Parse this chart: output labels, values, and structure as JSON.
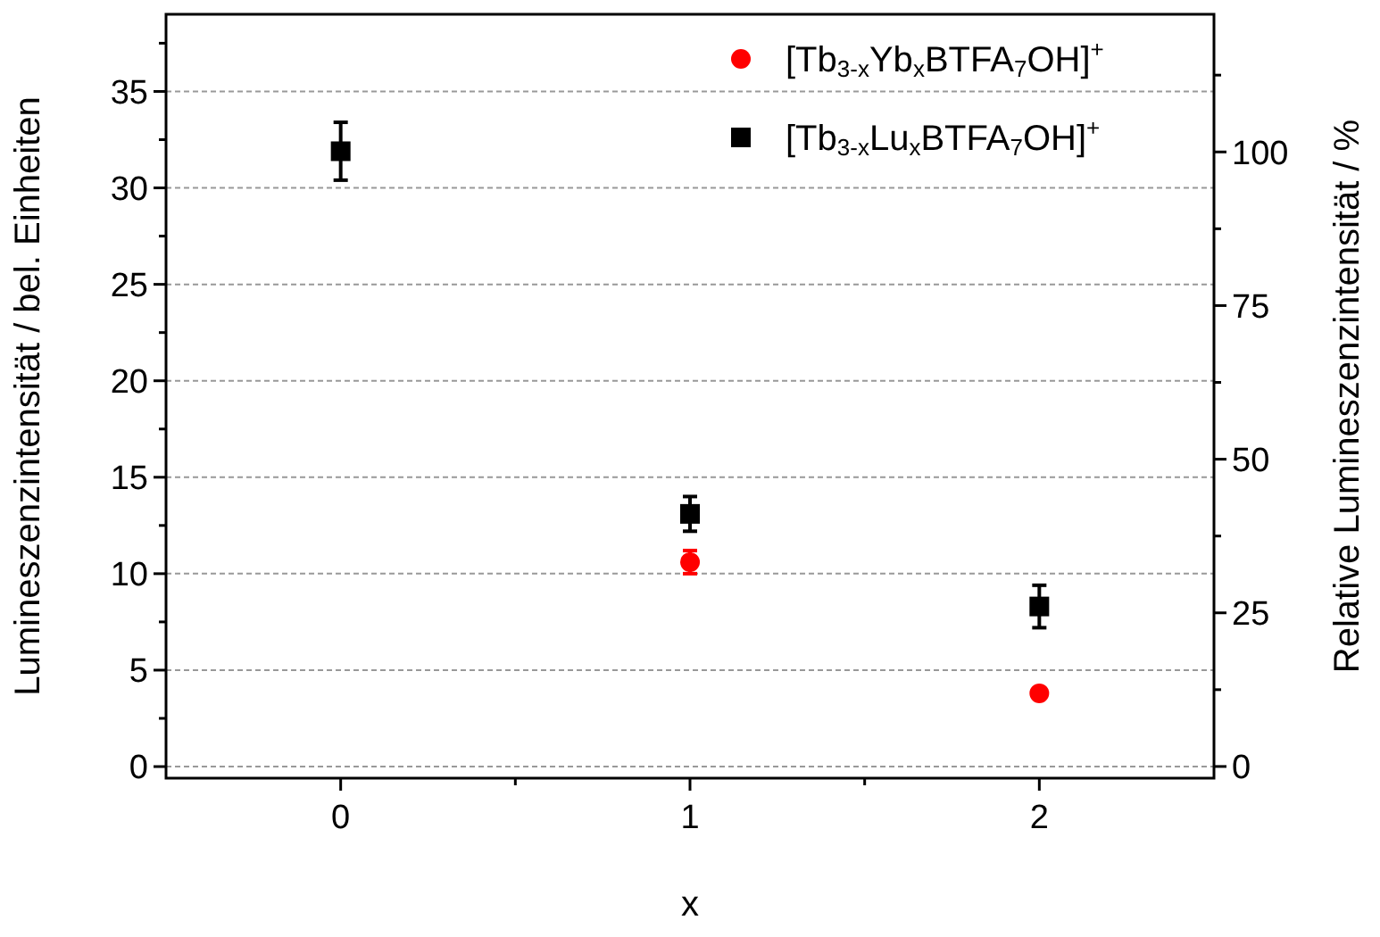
{
  "chart_data": {
    "type": "scatter",
    "xlabel": "x",
    "ylabel": "Lumineszenzintensität / bel. Einheiten",
    "y2label": "Relative Lumineszenzintensität / %",
    "x": [
      0,
      1,
      2
    ],
    "series": [
      {
        "name": "[Tb$_{3-x}$Yb$_{x}$BTFA$_{7}$OH]$^{+}$",
        "color": "#ff0000",
        "marker": "circle",
        "values": [
          null,
          10.6,
          3.8
        ],
        "errors": [
          null,
          0.6,
          null
        ]
      },
      {
        "name": "[Tb$_{3-x}$Lu$_{x}$BTFA$_{7}$OH]$^{+}$",
        "color": "#000000",
        "marker": "square",
        "values": [
          31.9,
          13.1,
          8.3
        ],
        "errors": [
          1.5,
          0.9,
          1.1
        ]
      }
    ],
    "xlim": [
      -0.5,
      2.5
    ],
    "xticks": [
      0,
      {
        "value": 0.5,
        "label": null
      },
      1,
      {
        "value": 1.5,
        "label": null
      },
      2
    ],
    "ylim": [
      -0.6,
      39
    ],
    "yticks": [
      0,
      {
        "value": 2.5,
        "label": null
      },
      5,
      {
        "value": 7.5,
        "label": null
      },
      10,
      {
        "value": 12.5,
        "label": null
      },
      15,
      {
        "value": 17.5,
        "label": null
      },
      20,
      {
        "value": 22.5,
        "label": null
      },
      25,
      {
        "value": 27.5,
        "label": null
      },
      30,
      {
        "value": 32.5,
        "label": null
      },
      35,
      {
        "value": 37.5,
        "label": null
      }
    ],
    "y2lim": [
      -1.9,
      122.4
    ],
    "y2ticks": [
      0,
      {
        "value": 12.5,
        "label": null
      },
      25,
      {
        "value": 37.5,
        "label": null
      },
      50,
      {
        "value": 62.5,
        "label": null
      },
      75,
      {
        "value": 87.5,
        "label": null
      },
      100,
      {
        "value": 112.5,
        "label": null
      }
    ],
    "grid": "y",
    "legend": "top right"
  }
}
